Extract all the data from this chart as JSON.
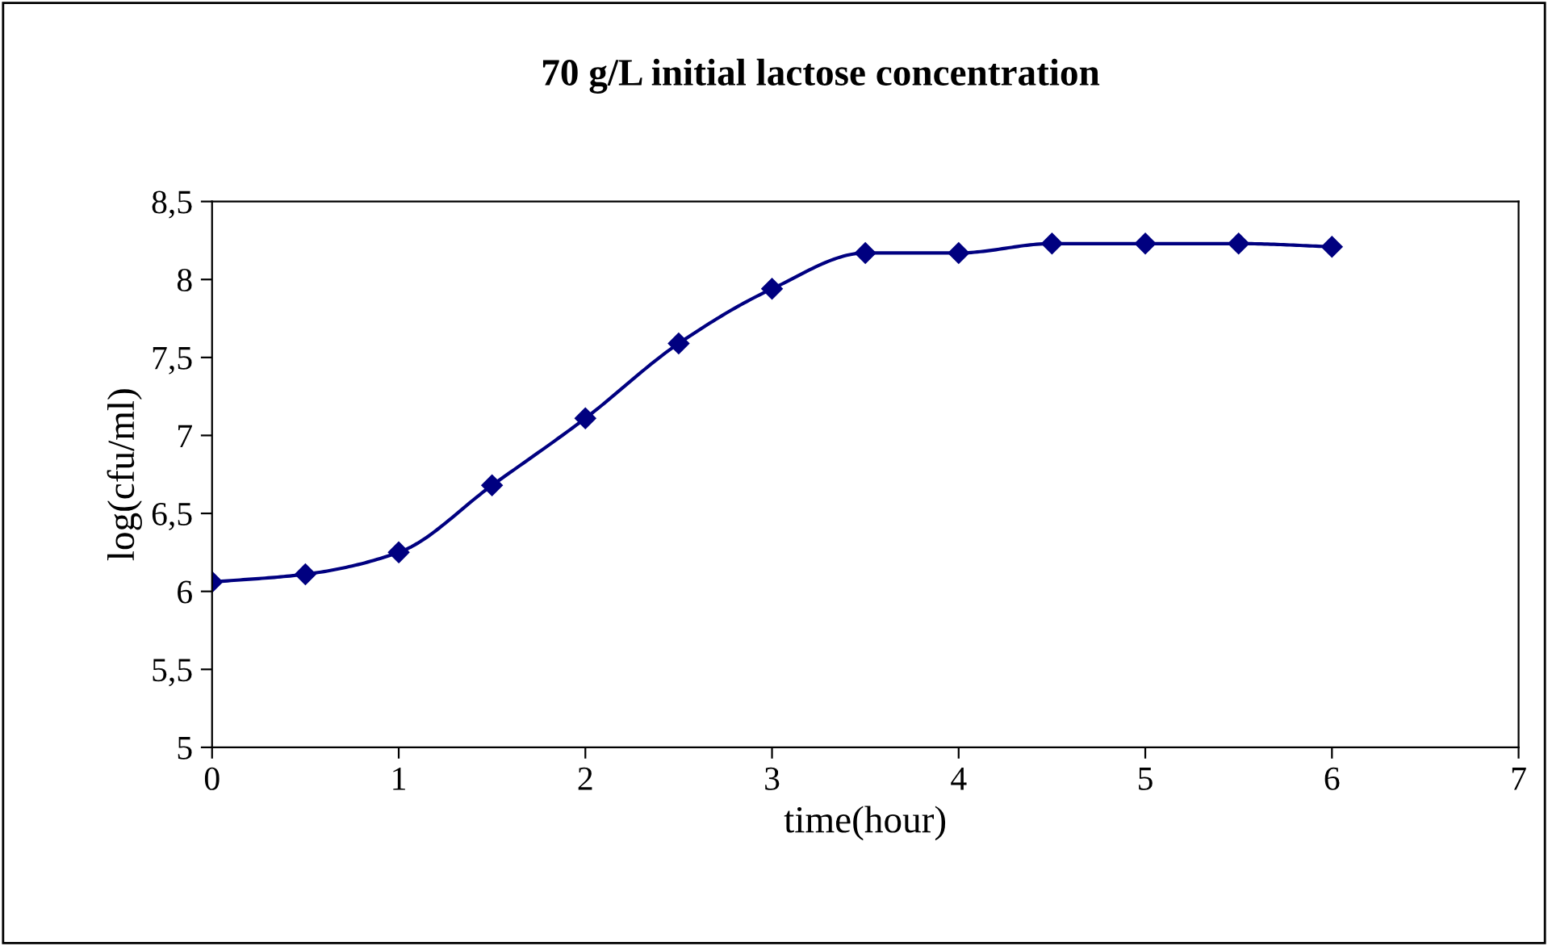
{
  "chart_data": {
    "type": "line",
    "title": "70 g/L initial lactose concentration",
    "xlabel": "time(hour)",
    "ylabel": "log(cfu/ml)",
    "x": [
      0,
      0.5,
      1,
      1.5,
      2,
      2.5,
      3,
      3.5,
      4,
      4.5,
      5,
      5.5,
      6
    ],
    "series": [
      {
        "color": "#000080",
        "values": [
          6.06,
          6.11,
          6.25,
          6.68,
          7.11,
          7.59,
          7.94,
          8.17,
          8.17,
          8.23,
          8.23,
          8.23,
          8.21
        ]
      }
    ],
    "xlim": [
      0,
      7
    ],
    "xticks": [
      0,
      1,
      2,
      3,
      4,
      5,
      6,
      7
    ],
    "ylim": [
      5,
      8.5
    ],
    "yticks": [
      5,
      {
        "value": 5.5,
        "label": "5,5"
      },
      6,
      {
        "value": 6.5,
        "label": "6,5"
      },
      7,
      {
        "value": 7.5,
        "label": "7,5"
      },
      8,
      {
        "value": 8.5,
        "label": "8,5"
      }
    ],
    "marker": "diamond",
    "line_style": "solid",
    "grid": false,
    "legend": false
  }
}
